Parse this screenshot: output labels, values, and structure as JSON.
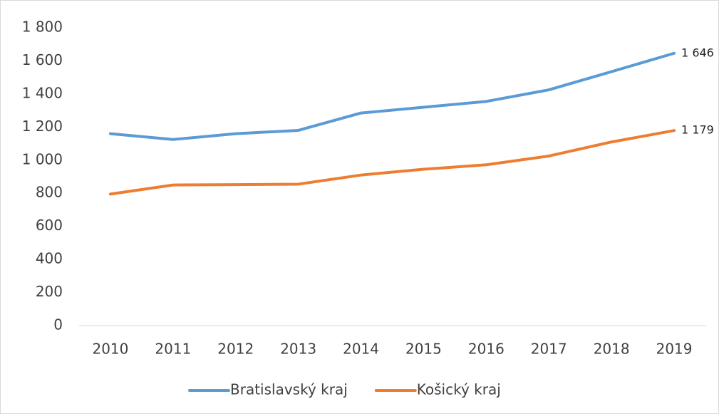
{
  "chart_data": {
    "type": "line",
    "categories": [
      "2010",
      "2011",
      "2012",
      "2013",
      "2014",
      "2015",
      "2016",
      "2017",
      "2018",
      "2019"
    ],
    "series": [
      {
        "name": "Bratislavský kraj",
        "color": "#5b9bd5",
        "values": [
          1160,
          1125,
          1160,
          1180,
          1285,
          1320,
          1355,
          1425,
          1535,
          1646
        ],
        "value_labels": [
          null,
          null,
          null,
          null,
          null,
          null,
          null,
          null,
          null,
          "1 646"
        ]
      },
      {
        "name": "Košický kraj",
        "color": "#ed7d31",
        "values": [
          795,
          850,
          852,
          855,
          910,
          945,
          972,
          1025,
          1110,
          1179
        ],
        "value_labels": [
          null,
          null,
          null,
          null,
          null,
          null,
          null,
          null,
          null,
          "1 179"
        ]
      }
    ],
    "ylim": [
      0,
      1800
    ],
    "yticks": [
      0,
      200,
      400,
      600,
      800,
      {
        "value": 1000,
        "label": "1 000"
      },
      {
        "value": 1200,
        "label": "1 200"
      },
      {
        "value": 1400,
        "label": "1 400"
      },
      {
        "value": 1600,
        "label": "1 600"
      },
      {
        "value": 1800,
        "label": "1 800"
      }
    ],
    "grid": false,
    "legend": "bottom"
  }
}
